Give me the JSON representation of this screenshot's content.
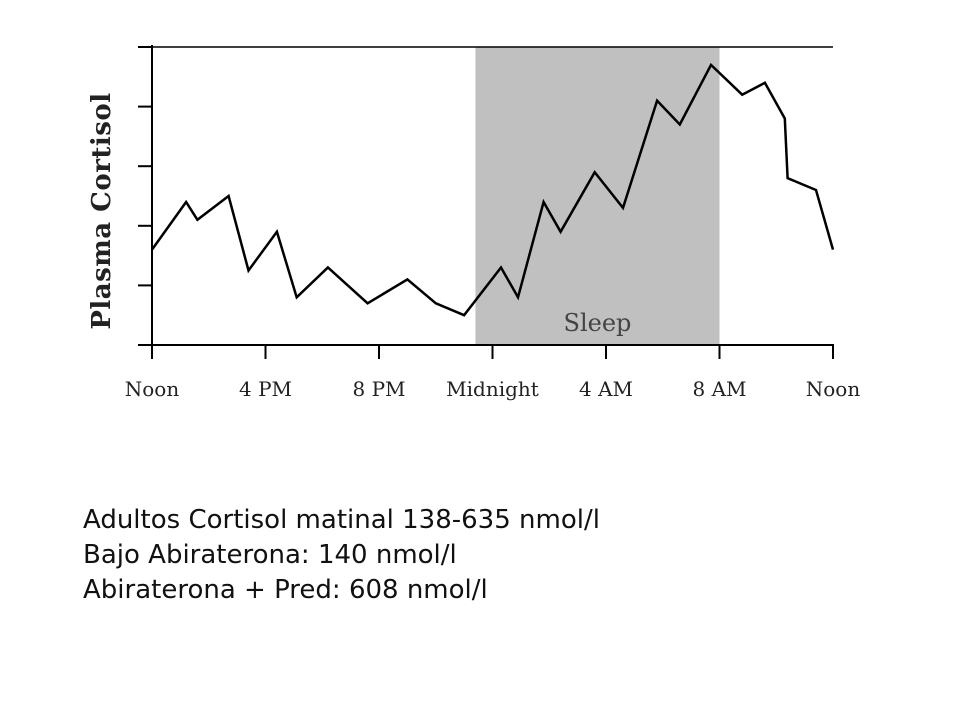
{
  "chart_data": {
    "type": "line",
    "ylabel": "Plasma Cortisol",
    "x_tick_labels": [
      "Noon",
      "4 PM",
      "8 PM",
      "Midnight",
      "4 AM",
      "8 AM",
      "Noon"
    ],
    "x_tick_hours": [
      0,
      4,
      8,
      12,
      16,
      20,
      24
    ],
    "xlim": [
      0,
      24
    ],
    "ylim": [
      0,
      5
    ],
    "y_tick_values": [
      0,
      1,
      2,
      3,
      4,
      5
    ],
    "shaded_region": {
      "label": "Sleep",
      "x_start": 11.4,
      "x_end": 20.0,
      "color": "#c0c0c0"
    },
    "series": [
      {
        "x": [
          0.0,
          1.2,
          1.6,
          2.7,
          3.4,
          4.4,
          5.1,
          6.2,
          7.6,
          9.0,
          10.0,
          11.0,
          12.3,
          12.9,
          13.8,
          14.4,
          15.6,
          16.6,
          17.8,
          18.6,
          19.7,
          20.8,
          21.6,
          22.3,
          22.4,
          23.4,
          24.0
        ],
        "y": [
          1.6,
          2.4,
          2.1,
          2.5,
          1.25,
          1.9,
          0.8,
          1.3,
          0.7,
          1.1,
          0.7,
          0.5,
          1.3,
          0.8,
          2.4,
          1.9,
          2.9,
          2.3,
          4.1,
          3.7,
          4.7,
          4.2,
          4.4,
          3.8,
          2.8,
          2.6,
          1.6
        ]
      }
    ],
    "colors": {
      "line": "#000000",
      "band": "#c0c0c0",
      "axis": "#000000"
    }
  },
  "notes": {
    "line1": "Adultos Cortisol matinal 138-635 nmol/l",
    "line2": "Bajo Abiraterona: 140 nmol/l",
    "line3": "Abiraterona + Pred: 608 nmol/l"
  }
}
